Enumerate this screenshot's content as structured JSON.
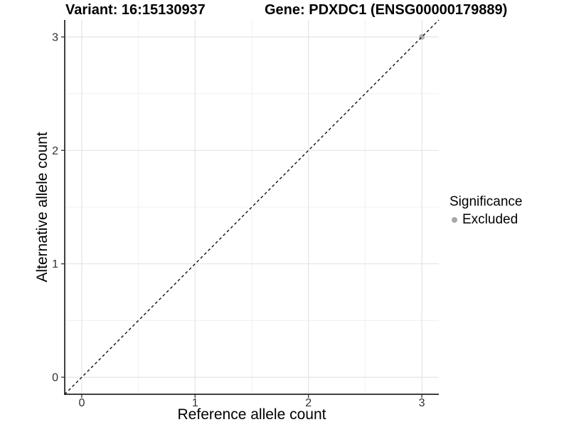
{
  "titles": {
    "variant": "Variant: 16:15130937",
    "gene": "Gene: PDXDC1 (ENSG00000179889)"
  },
  "axes": {
    "x_label": "Reference allele count",
    "y_label": "Alternative allele count"
  },
  "legend": {
    "title": "Significance",
    "items": [
      {
        "label": "Excluded",
        "color": "#a8a8a8"
      }
    ]
  },
  "chart_data": {
    "type": "scatter",
    "title_left": "Variant: 16:15130937",
    "title_right": "Gene: PDXDC1 (ENSG00000179889)",
    "xlabel": "Reference allele count",
    "ylabel": "Alternative allele count",
    "xlim": [
      -0.15,
      3.15
    ],
    "ylim": [
      -0.15,
      3.15
    ],
    "x_ticks": [
      0,
      1,
      2,
      3
    ],
    "y_ticks": [
      0,
      1,
      2,
      3
    ],
    "x_minor_ticks": [
      0.5,
      1.5,
      2.5
    ],
    "y_minor_ticks": [
      0.5,
      1.5,
      2.5
    ],
    "grid": "major+minor",
    "legend_position": "right",
    "series": [
      {
        "name": "Excluded",
        "color": "#b3b3b3",
        "points": [
          {
            "x": 3,
            "y": 3
          }
        ]
      }
    ],
    "reference_line": {
      "kind": "identity",
      "slope": 1,
      "intercept": 0,
      "style": "dashed",
      "color": "#000000"
    },
    "style": {
      "grid_major_color": "#e4e4e4",
      "grid_minor_color": "#f0f0f0",
      "axis_line_color": "#404040",
      "tick_color": "#333333",
      "tick_label_color": "#303030",
      "point_radius": 4
    }
  }
}
